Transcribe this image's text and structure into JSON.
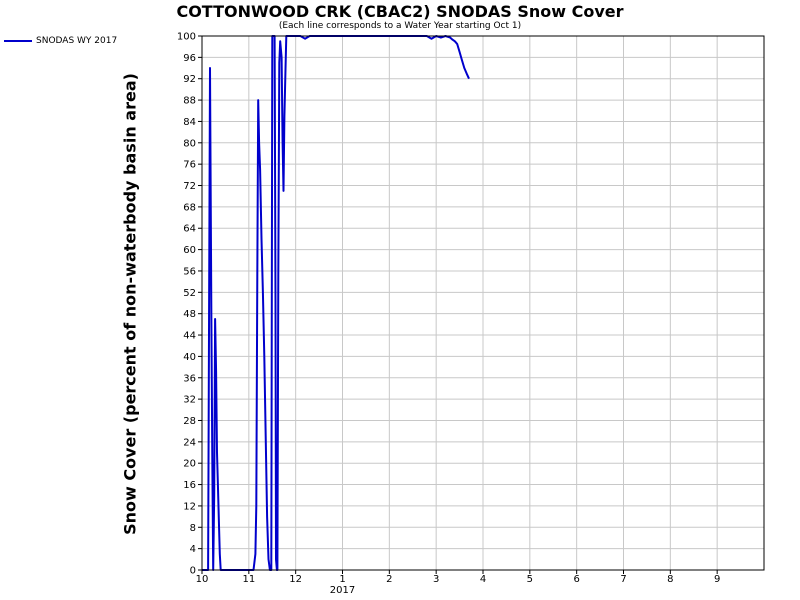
{
  "chart_data": {
    "type": "line",
    "title": "COTTONWOOD CRK (CBAC2) SNODAS Snow Cover",
    "subtitle": "(Each line corresponds to a Water Year starting Oct 1)",
    "xlabel": "",
    "ylabel": "Snow Cover (percent of non-waterbody basin area)",
    "ylim": [
      0,
      100
    ],
    "yticks": [
      0,
      4,
      8,
      12,
      16,
      20,
      24,
      28,
      32,
      36,
      40,
      44,
      48,
      52,
      56,
      60,
      64,
      68,
      72,
      76,
      80,
      84,
      88,
      92,
      96,
      100
    ],
    "xlim": [
      0,
      12
    ],
    "xticks": [
      {
        "v": 0,
        "label": "10"
      },
      {
        "v": 1,
        "label": "11"
      },
      {
        "v": 2,
        "label": "12"
      },
      {
        "v": 3,
        "label": "1"
      },
      {
        "v": 4,
        "label": "2"
      },
      {
        "v": 5,
        "label": "3"
      },
      {
        "v": 6,
        "label": "4"
      },
      {
        "v": 7,
        "label": "5"
      },
      {
        "v": 8,
        "label": "6"
      },
      {
        "v": 9,
        "label": "7"
      },
      {
        "v": 10,
        "label": "8"
      },
      {
        "v": 11,
        "label": "9"
      }
    ],
    "year_label": "2017",
    "grid": true,
    "legend_position": "top-left",
    "series": [
      {
        "name": "SNODAS WY 2017",
        "color": "#0000cc",
        "x": [
          0,
          0.07,
          0.13,
          0.17,
          0.2,
          0.22,
          0.24,
          0.26,
          0.28,
          0.3,
          0.32,
          0.34,
          0.36,
          0.38,
          0.4,
          0.44,
          0.6,
          0.8,
          1.0,
          1.1,
          1.14,
          1.16,
          1.18,
          1.2,
          1.22,
          1.24,
          1.27,
          1.3,
          1.33,
          1.36,
          1.39,
          1.42,
          1.45,
          1.48,
          1.5,
          1.53,
          1.55,
          1.57,
          1.58,
          1.6,
          1.61,
          1.63,
          1.65,
          1.67,
          1.7,
          1.72,
          1.74,
          1.76,
          1.78,
          1.8,
          1.82,
          1.84,
          1.86,
          1.88,
          1.9,
          1.95,
          2.0,
          2.1,
          2.2,
          2.3,
          2.4,
          2.5,
          2.6,
          2.8,
          3.0,
          3.2,
          3.4,
          3.6,
          3.8,
          4.0,
          4.3,
          4.6,
          4.7,
          4.8,
          4.9,
          5.0,
          5.1,
          5.2,
          5.3,
          5.35,
          5.4,
          5.45,
          5.5,
          5.55,
          5.6,
          5.65,
          5.7
        ],
        "values": [
          0,
          0,
          0,
          94,
          46,
          21,
          0,
          14,
          47,
          37,
          22,
          16,
          9,
          3,
          0,
          0,
          0,
          0,
          0,
          0,
          3,
          12,
          55,
          88,
          80,
          75,
          62,
          52,
          40,
          25,
          10,
          2,
          0,
          0,
          100,
          100,
          100,
          50,
          2,
          0,
          0,
          55,
          95,
          99,
          96,
          80,
          71,
          85,
          93,
          100,
          100,
          100,
          100,
          100,
          100,
          100,
          100,
          100,
          99.5,
          100,
          100,
          100,
          100,
          100,
          100,
          100,
          100,
          100,
          100,
          100,
          100,
          100,
          100,
          100,
          99.5,
          100,
          99.7,
          100,
          99.7,
          99.3,
          99,
          98.5,
          97,
          95.5,
          94,
          93,
          92
        ]
      }
    ]
  }
}
